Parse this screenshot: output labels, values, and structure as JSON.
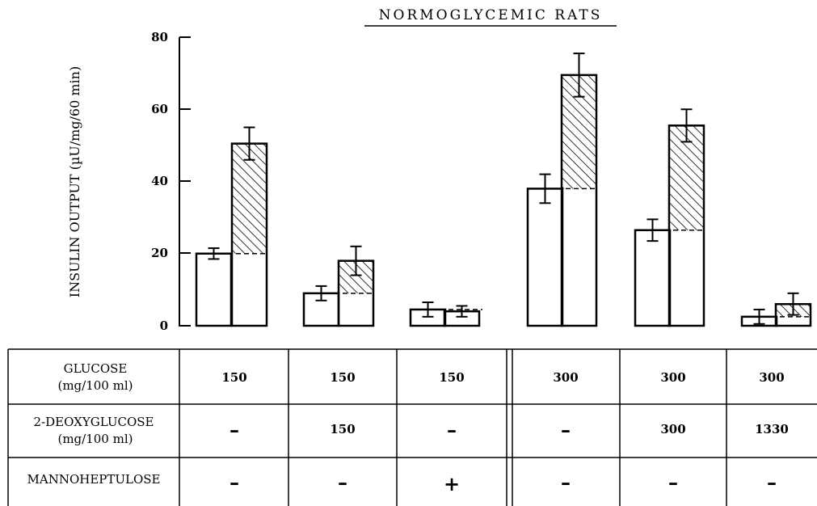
{
  "chart_data": {
    "type": "bar",
    "title": "NORMOGLYCEMIC RATS",
    "ylabel": "INSULIN OUTPUT (µU/mg/60 min)",
    "ylim": [
      0,
      80
    ],
    "yticks": [
      "0",
      "20",
      "40",
      "60",
      "80"
    ],
    "groups": [
      {
        "bars": [
          {
            "value": 20,
            "err": 1.5,
            "baseline": null
          },
          {
            "value": 50.5,
            "err": 4.5,
            "baseline": 20
          }
        ]
      },
      {
        "bars": [
          {
            "value": 9,
            "err": 2,
            "baseline": null
          },
          {
            "value": 18,
            "err": 4,
            "baseline": 9
          }
        ]
      },
      {
        "bars": [
          {
            "value": 4.5,
            "err": 2,
            "baseline": null
          },
          {
            "value": 4,
            "err": 1.5,
            "baseline": 4.5
          }
        ]
      },
      {
        "bars": [
          {
            "value": 38,
            "err": 4,
            "baseline": null
          },
          {
            "value": 69.5,
            "err": 6,
            "baseline": 38
          }
        ]
      },
      {
        "bars": [
          {
            "value": 26.5,
            "err": 3,
            "baseline": null
          },
          {
            "value": 55.5,
            "err": 4.5,
            "baseline": 26.5
          }
        ]
      },
      {
        "bars": [
          {
            "value": 2.5,
            "err": 2,
            "baseline": null
          },
          {
            "value": 6,
            "err": 3,
            "baseline": 2.5
          }
        ]
      }
    ]
  },
  "table": {
    "rows": [
      {
        "label_lines": [
          "GLUCOSE",
          "(mg/100 ml)"
        ],
        "cells": [
          "150",
          "150",
          "150",
          "300",
          "300",
          "300"
        ]
      },
      {
        "label_lines": [
          "2-DEOXYGLUCOSE",
          "(mg/100 ml)"
        ],
        "cells": [
          "–",
          "150",
          "–",
          "–",
          "300",
          "1330"
        ]
      },
      {
        "label_lines": [
          "MANNOHEPTULOSE"
        ],
        "cells": [
          "–",
          "–",
          "+",
          "–",
          "–",
          "–"
        ]
      }
    ]
  }
}
